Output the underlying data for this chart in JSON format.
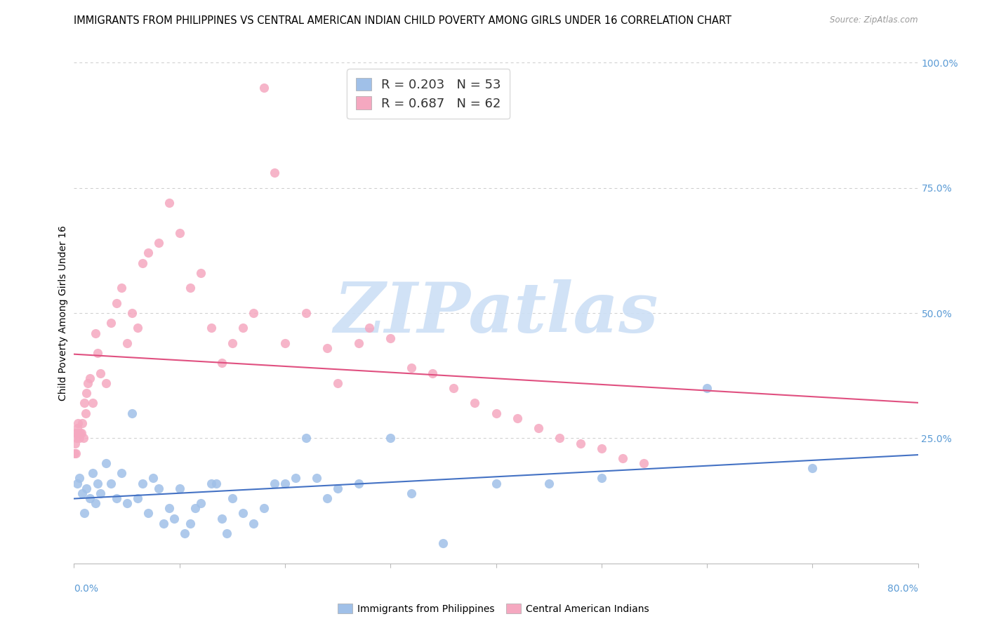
{
  "title": "IMMIGRANTS FROM PHILIPPINES VS CENTRAL AMERICAN INDIAN CHILD POVERTY AMONG GIRLS UNDER 16 CORRELATION CHART",
  "source": "Source: ZipAtlas.com",
  "ylabel": "Child Poverty Among Girls Under 16",
  "legend1_label": "Immigrants from Philippines",
  "legend2_label": "Central American Indians",
  "R1": 0.203,
  "N1": 53,
  "R2": 0.687,
  "N2": 62,
  "color_blue": "#a0c0e8",
  "color_pink": "#f5a8c0",
  "color_line_blue": "#4472c4",
  "color_line_pink": "#e05080",
  "color_right_axis": "#5b9bd5",
  "blue_points_x": [
    0.3,
    0.5,
    0.8,
    1.0,
    1.2,
    1.5,
    1.8,
    2.0,
    2.2,
    2.5,
    3.0,
    3.5,
    4.0,
    4.5,
    5.0,
    5.5,
    6.0,
    6.5,
    7.0,
    7.5,
    8.0,
    8.5,
    9.0,
    9.5,
    10.0,
    10.5,
    11.0,
    11.5,
    12.0,
    13.0,
    13.5,
    14.0,
    14.5,
    15.0,
    16.0,
    17.0,
    18.0,
    19.0,
    20.0,
    21.0,
    22.0,
    23.0,
    24.0,
    25.0,
    27.0,
    30.0,
    32.0,
    35.0,
    40.0,
    45.0,
    50.0,
    60.0,
    70.0
  ],
  "blue_points_y": [
    16,
    17,
    14,
    10,
    15,
    13,
    18,
    12,
    16,
    14,
    20,
    16,
    13,
    18,
    12,
    30,
    13,
    16,
    10,
    17,
    15,
    8,
    11,
    9,
    15,
    6,
    8,
    11,
    12,
    16,
    16,
    9,
    6,
    13,
    10,
    8,
    11,
    16,
    16,
    17,
    25,
    17,
    13,
    15,
    16,
    25,
    14,
    4,
    16,
    16,
    17,
    35,
    19
  ],
  "pink_points_x": [
    0.05,
    0.1,
    0.15,
    0.2,
    0.25,
    0.3,
    0.35,
    0.4,
    0.5,
    0.6,
    0.7,
    0.8,
    0.9,
    1.0,
    1.1,
    1.2,
    1.3,
    1.5,
    1.8,
    2.0,
    2.2,
    2.5,
    3.0,
    3.5,
    4.0,
    4.5,
    5.0,
    5.5,
    6.0,
    6.5,
    7.0,
    8.0,
    9.0,
    10.0,
    11.0,
    12.0,
    13.0,
    14.0,
    15.0,
    16.0,
    17.0,
    18.0,
    19.0,
    20.0,
    22.0,
    24.0,
    25.0,
    27.0,
    28.0,
    30.0,
    32.0,
    34.0,
    36.0,
    38.0,
    40.0,
    42.0,
    44.0,
    46.0,
    48.0,
    50.0,
    52.0,
    54.0
  ],
  "pink_points_y": [
    22,
    24,
    26,
    22,
    25,
    27,
    26,
    28,
    25,
    26,
    26,
    28,
    25,
    32,
    30,
    34,
    36,
    37,
    32,
    46,
    42,
    38,
    36,
    48,
    52,
    55,
    44,
    50,
    47,
    60,
    62,
    64,
    72,
    66,
    55,
    58,
    47,
    40,
    44,
    47,
    50,
    95,
    78,
    44,
    50,
    43,
    36,
    44,
    47,
    45,
    39,
    38,
    35,
    32,
    30,
    29,
    27,
    25,
    24,
    23,
    21,
    20
  ],
  "xlim": [
    0,
    80
  ],
  "ylim": [
    0,
    100
  ],
  "yticks": [
    0,
    25,
    50,
    75,
    100
  ],
  "ytick_labels_right": [
    "",
    "25.0%",
    "50.0%",
    "75.0%",
    "100.0%"
  ],
  "grid_color": "#cccccc",
  "background_color": "#ffffff",
  "title_fontsize": 10.5,
  "axis_label_fontsize": 10,
  "tick_fontsize": 10,
  "watermark_text": "ZIPatlas",
  "watermark_color": "#ccdff5",
  "watermark_fontsize": 72
}
